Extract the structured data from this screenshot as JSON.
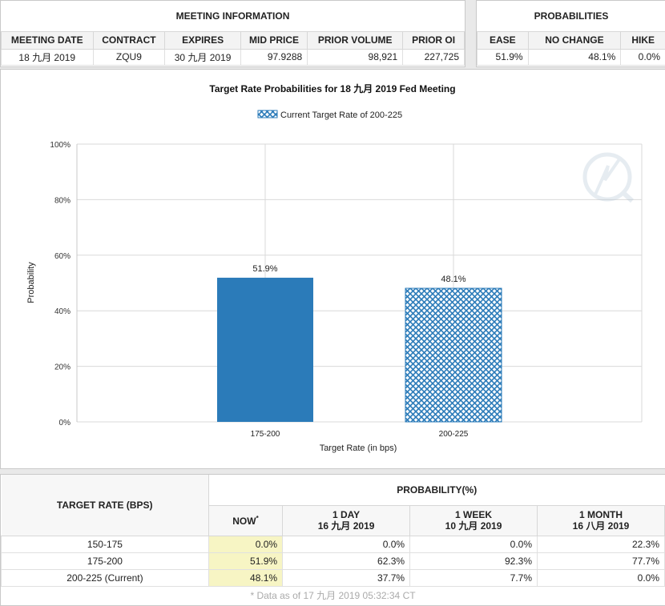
{
  "meeting_info": {
    "title": "MEETING INFORMATION",
    "headers": [
      "MEETING DATE",
      "CONTRACT",
      "EXPIRES",
      "MID PRICE",
      "PRIOR VOLUME",
      "PRIOR OI"
    ],
    "row": [
      "18 九月 2019",
      "ZQU9",
      "30 九月 2019",
      "97.9288",
      "98,921",
      "227,725"
    ]
  },
  "probabilities": {
    "title": "PROBABILITIES",
    "headers": [
      "EASE",
      "NO CHANGE",
      "HIKE"
    ],
    "row": [
      "51.9%",
      "48.1%",
      "0.0%"
    ]
  },
  "chart_data": {
    "type": "bar",
    "title": "Target Rate Probabilities for 18 九月 2019  Fed Meeting",
    "legend": "Current Target Rate of 200-225",
    "xlabel": "Target Rate (in bps)",
    "ylabel": "Probability",
    "categories": [
      "175-200",
      "200-225"
    ],
    "values": [
      51.9,
      48.1
    ],
    "data_labels": [
      "51.9%",
      "48.1%"
    ],
    "current_index": 1,
    "y_ticks": [
      "0%",
      "20%",
      "40%",
      "60%",
      "80%",
      "100%"
    ],
    "ylim": [
      0,
      100
    ],
    "grid": true,
    "colors": {
      "bar": "#2b7bb9",
      "hatch": "#2b7bb9"
    }
  },
  "prob_table": {
    "row_header": "TARGET RATE (BPS)",
    "group_header": "PROBABILITY(%)",
    "columns": [
      {
        "line1": "NOW",
        "sup": "*",
        "line2": ""
      },
      {
        "line1": "1 DAY",
        "line2": "16 九月 2019"
      },
      {
        "line1": "1 WEEK",
        "line2": "10 九月 2019"
      },
      {
        "line1": "1 MONTH",
        "line2": "16 八月 2019"
      }
    ],
    "rows": [
      {
        "rate": "150-175",
        "values": [
          "0.0%",
          "0.0%",
          "0.0%",
          "22.3%"
        ]
      },
      {
        "rate": "175-200",
        "values": [
          "51.9%",
          "62.3%",
          "92.3%",
          "77.7%"
        ]
      },
      {
        "rate": "200-225 (Current)",
        "values": [
          "48.1%",
          "37.7%",
          "7.7%",
          "0.0%"
        ]
      }
    ],
    "footnote": "* Data as of 17 九月 2019 05:32:34 CT"
  }
}
